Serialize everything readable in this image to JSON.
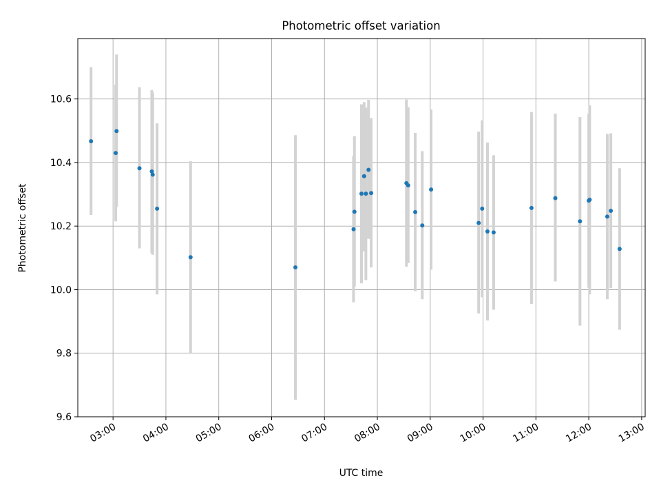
{
  "chart_data": {
    "type": "scatter",
    "title": "Photometric offset variation",
    "xlabel": "UTC time",
    "ylabel": "Photometric offset",
    "xlim": [
      "02:20",
      "13:04"
    ],
    "ylim": [
      9.6,
      10.79
    ],
    "xticks": [
      "03:00",
      "04:00",
      "05:00",
      "06:00",
      "07:00",
      "08:00",
      "09:00",
      "10:00",
      "11:00",
      "12:00",
      "13:00"
    ],
    "yticks": [
      "9.6",
      "9.8",
      "10.0",
      "10.2",
      "10.4",
      "10.6"
    ],
    "grid": true,
    "colors": {
      "point": "#1f77b4",
      "errorbar": "#d3d3d3",
      "grid": "#b0b0b0"
    },
    "points": [
      {
        "x": "02:35",
        "y": 10.467,
        "low": 10.235,
        "high": 10.7
      },
      {
        "x": "03:03",
        "y": 10.43,
        "low": 10.215,
        "high": 10.645
      },
      {
        "x": "03:04",
        "y": 10.499,
        "low": 10.26,
        "high": 10.74
      },
      {
        "x": "03:30",
        "y": 10.382,
        "low": 10.13,
        "high": 10.637
      },
      {
        "x": "03:44",
        "y": 10.372,
        "low": 10.115,
        "high": 10.628
      },
      {
        "x": "03:45",
        "y": 10.362,
        "low": 10.11,
        "high": 10.62
      },
      {
        "x": "03:50",
        "y": 10.255,
        "low": 9.985,
        "high": 10.523
      },
      {
        "x": "04:28",
        "y": 10.102,
        "low": 9.8,
        "high": 10.404
      },
      {
        "x": "06:27",
        "y": 10.07,
        "low": 9.653,
        "high": 10.486
      },
      {
        "x": "07:33",
        "y": 10.19,
        "low": 9.96,
        "high": 10.42
      },
      {
        "x": "07:34",
        "y": 10.245,
        "low": 10.01,
        "high": 10.483
      },
      {
        "x": "07:42",
        "y": 10.302,
        "low": 10.02,
        "high": 10.583
      },
      {
        "x": "07:45",
        "y": 10.357,
        "low": 10.12,
        "high": 10.59
      },
      {
        "x": "07:47",
        "y": 10.302,
        "low": 10.03,
        "high": 10.573
      },
      {
        "x": "07:50",
        "y": 10.377,
        "low": 10.16,
        "high": 10.597
      },
      {
        "x": "07:53",
        "y": 10.304,
        "low": 10.07,
        "high": 10.54
      },
      {
        "x": "08:33",
        "y": 10.335,
        "low": 10.072,
        "high": 10.598
      },
      {
        "x": "08:35",
        "y": 10.328,
        "low": 10.084,
        "high": 10.574
      },
      {
        "x": "08:43",
        "y": 10.244,
        "low": 9.995,
        "high": 10.493
      },
      {
        "x": "08:51",
        "y": 10.202,
        "low": 9.97,
        "high": 10.436
      },
      {
        "x": "09:01",
        "y": 10.315,
        "low": 10.063,
        "high": 10.567
      },
      {
        "x": "09:55",
        "y": 10.21,
        "low": 9.925,
        "high": 10.497
      },
      {
        "x": "09:59",
        "y": 10.255,
        "low": 9.976,
        "high": 10.533
      },
      {
        "x": "10:05",
        "y": 10.183,
        "low": 9.903,
        "high": 10.463
      },
      {
        "x": "10:12",
        "y": 10.18,
        "low": 9.937,
        "high": 10.423
      },
      {
        "x": "10:55",
        "y": 10.257,
        "low": 9.955,
        "high": 10.559
      },
      {
        "x": "11:22",
        "y": 10.288,
        "low": 10.026,
        "high": 10.554
      },
      {
        "x": "11:50",
        "y": 10.215,
        "low": 9.887,
        "high": 10.543
      },
      {
        "x": "12:00",
        "y": 10.28,
        "low": 10.006,
        "high": 10.554
      },
      {
        "x": "12:01",
        "y": 10.283,
        "low": 9.985,
        "high": 10.58
      },
      {
        "x": "12:21",
        "y": 10.23,
        "low": 9.97,
        "high": 10.49
      },
      {
        "x": "12:25",
        "y": 10.248,
        "low": 10.005,
        "high": 10.492
      },
      {
        "x": "12:35",
        "y": 10.128,
        "low": 9.874,
        "high": 10.382
      }
    ]
  }
}
